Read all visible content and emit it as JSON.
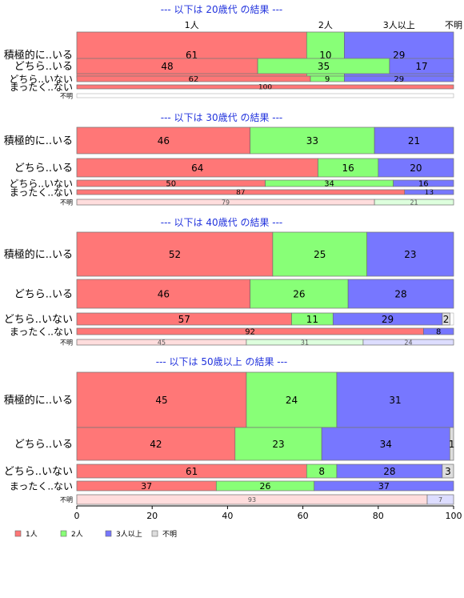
{
  "chart_data": {
    "type": "bar",
    "orientation": "horizontal",
    "stacked": true,
    "xlim": [
      0,
      100
    ],
    "x_ticks": [
      "0",
      "20",
      "40",
      "60",
      "80",
      "100"
    ],
    "column_headers": [
      "1人",
      "2人",
      "3人以上",
      "不明"
    ],
    "legend": {
      "position": "bottom-left",
      "items": [
        {
          "name": "1人",
          "color": "#ff7777"
        },
        {
          "name": "2人",
          "color": "#88ff77"
        },
        {
          "name": "3人以上",
          "color": "#7777ff"
        },
        {
          "name": "不明",
          "color": "#dddddd"
        }
      ]
    },
    "colors": {
      "strong": [
        "#ff7777",
        "#88ff77",
        "#7777ff",
        "#dddddd"
      ],
      "light": [
        "#ffdddd",
        "#ddffdd",
        "#ddddff",
        "#eeeeee"
      ]
    },
    "groups": [
      {
        "title": "--- 以下は 20歳代 の結果 ---",
        "rows": [
          {
            "label": "積極的に..いる",
            "values": [
              61,
              10,
              29,
              0
            ]
          },
          {
            "label": "どちら..いる",
            "values": [
              48,
              35,
              17,
              0
            ]
          },
          {
            "label": "どちら..いない",
            "values": [
              62,
              9,
              29,
              0
            ]
          },
          {
            "label": "まったく..ない",
            "values": [
              100,
              0,
              0,
              0
            ]
          },
          {
            "label": "不明",
            "values": [
              0,
              0,
              0,
              0
            ],
            "muted": true
          }
        ]
      },
      {
        "title": "--- 以下は 30歳代 の結果 ---",
        "rows": [
          {
            "label": "積極的に..いる",
            "values": [
              46,
              33,
              21,
              0
            ]
          },
          {
            "label": "どちら..いる",
            "values": [
              64,
              16,
              20,
              0
            ]
          },
          {
            "label": "どちら..いない",
            "values": [
              50,
              34,
              16,
              0
            ]
          },
          {
            "label": "まったく..ない",
            "values": [
              87,
              0,
              13,
              0
            ]
          },
          {
            "label": "不明",
            "values": [
              79,
              21,
              0,
              0
            ],
            "muted": true
          }
        ]
      },
      {
        "title": "--- 以下は 40歳代 の結果 ---",
        "rows": [
          {
            "label": "積極的に..いる",
            "values": [
              52,
              25,
              23,
              0
            ]
          },
          {
            "label": "どちら..いる",
            "values": [
              46,
              26,
              28,
              0
            ]
          },
          {
            "label": "どちら..いない",
            "values": [
              57,
              11,
              29,
              2
            ]
          },
          {
            "label": "まったく..ない",
            "values": [
              92,
              0,
              8,
              0
            ]
          },
          {
            "label": "不明",
            "values": [
              45,
              31,
              24,
              0
            ],
            "muted": true
          }
        ]
      },
      {
        "title": "--- 以下は 50歳以上 の結果 ---",
        "rows": [
          {
            "label": "積極的に..いる",
            "values": [
              45,
              24,
              31,
              0
            ]
          },
          {
            "label": "どちら..いる",
            "values": [
              42,
              23,
              34,
              1
            ]
          },
          {
            "label": "どちら..いない",
            "values": [
              61,
              8,
              28,
              3
            ]
          },
          {
            "label": "まったく..ない",
            "values": [
              37,
              26,
              37,
              0
            ]
          },
          {
            "label": "不明",
            "values": [
              93,
              0,
              7,
              0
            ],
            "muted": true
          }
        ]
      }
    ]
  }
}
